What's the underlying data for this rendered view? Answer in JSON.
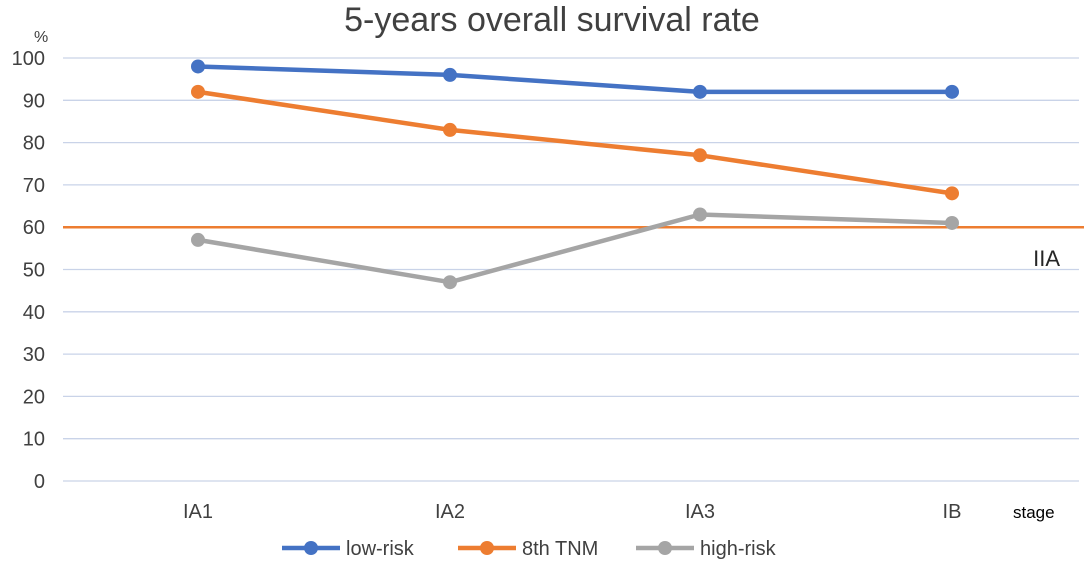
{
  "chart_data": {
    "type": "line",
    "title": "5-years overall survival rate",
    "ylabel": "%",
    "xlabel": "stage",
    "categories": [
      "IA1",
      "IA2",
      "IA3",
      "IB"
    ],
    "ylim": [
      0,
      100
    ],
    "yticks": [
      0,
      10,
      20,
      30,
      40,
      50,
      60,
      70,
      80,
      90,
      100
    ],
    "grid": true,
    "legend_position": "bottom",
    "series": [
      {
        "name": "low-risk",
        "color": "#4472C4",
        "values": [
          98,
          96,
          92,
          92
        ]
      },
      {
        "name": "8th TNM",
        "color": "#ED7D31",
        "values": [
          92,
          83,
          77,
          68
        ]
      },
      {
        "name": "high-risk",
        "color": "#A5A5A5",
        "values": [
          57,
          47,
          63,
          61
        ]
      }
    ],
    "reference_line": {
      "value": 60,
      "label": "IIA",
      "color": "#ED7D31"
    }
  }
}
